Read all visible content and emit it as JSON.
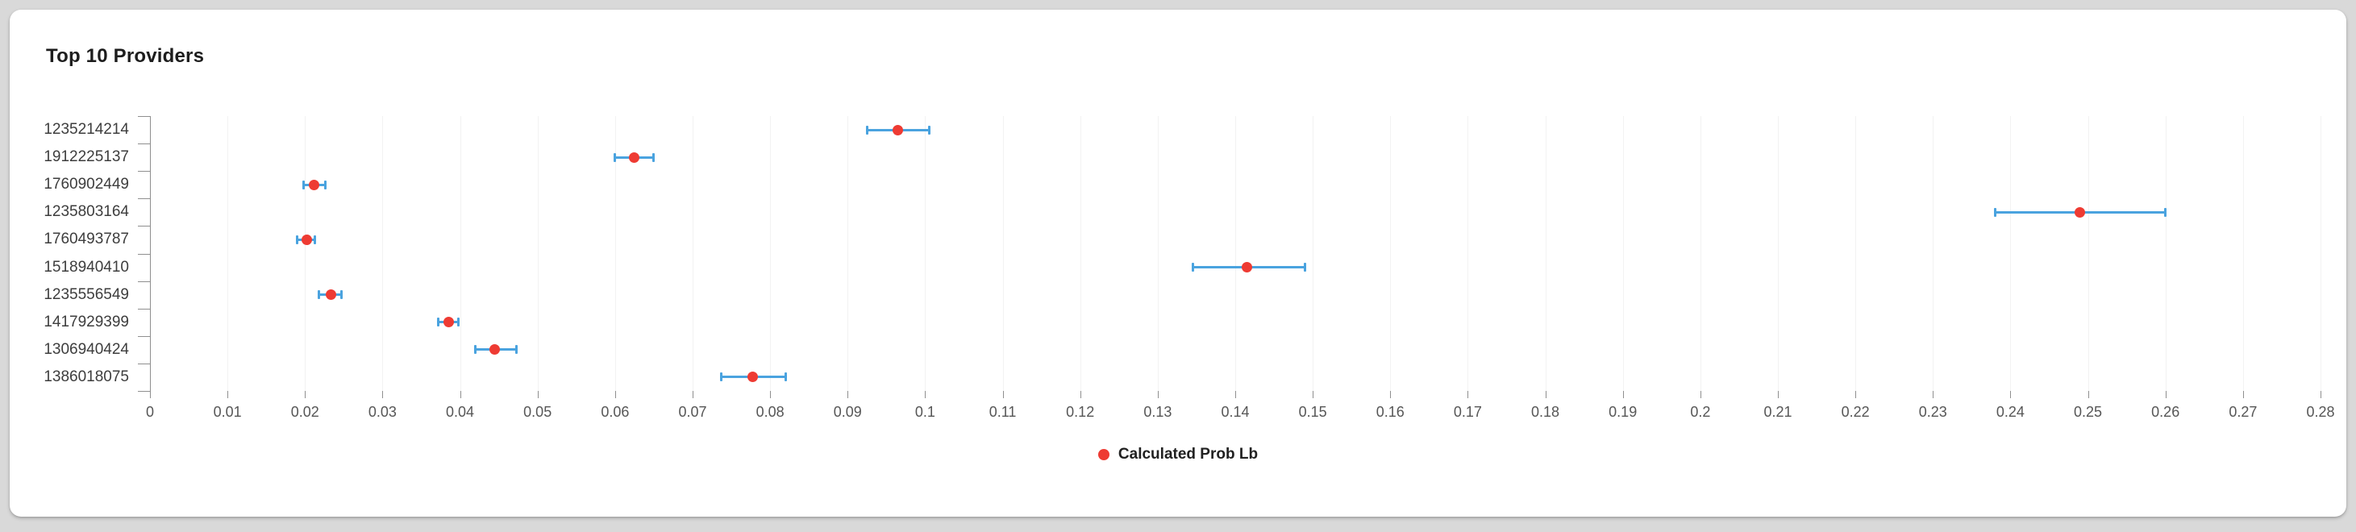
{
  "page": {
    "background": "#d9d9d9",
    "card_background": "#ffffff"
  },
  "header": {
    "title": "Top 10 Providers"
  },
  "chart_data": {
    "type": "scatter",
    "orientation": "horizontal",
    "title": "Top 10 Providers",
    "categories": [
      "1235214214",
      "1912225137",
      "1760902449",
      "1235803164",
      "1760493787",
      "1518940410",
      "1235556549",
      "1417929399",
      "1306940424",
      "1386018075"
    ],
    "series": [
      {
        "name": "Calculated Prob Lb",
        "values": [
          0.0965,
          0.0625,
          0.0212,
          0.249,
          0.0202,
          0.1415,
          0.0234,
          0.0385,
          0.0445,
          0.0778
        ],
        "error_low": [
          0.0925,
          0.06,
          0.0198,
          0.238,
          0.019,
          0.1345,
          0.0218,
          0.0372,
          0.042,
          0.0737
        ],
        "error_high": [
          0.1005,
          0.065,
          0.0226,
          0.26,
          0.0213,
          0.149,
          0.0247,
          0.0398,
          0.0473,
          0.082
        ]
      }
    ],
    "xlim": [
      0,
      0.28
    ],
    "x_tick_step": 0.01,
    "x_tick_labels": [
      "0",
      "0.01",
      "0.02",
      "0.03",
      "0.04",
      "0.05",
      "0.06",
      "0.07",
      "0.08",
      "0.09",
      "0.1",
      "0.11",
      "0.12",
      "0.13",
      "0.14",
      "0.15",
      "0.16",
      "0.17",
      "0.18",
      "0.19",
      "0.2",
      "0.21",
      "0.22",
      "0.23",
      "0.24",
      "0.25",
      "0.26",
      "0.27",
      "0.28"
    ],
    "grid": true,
    "legend_position": "bottom",
    "colors": {
      "point": "#ee3b33",
      "error_bar": "#4aa3df",
      "grid": "#f2f2f2",
      "axis": "#8f8f8f",
      "tick_label": "#565656",
      "category_label": "#3d3d3d",
      "title": "#1d1d1d"
    }
  },
  "legend": {
    "items": [
      {
        "label": "Calculated Prob Lb",
        "color": "#ee3b33"
      }
    ]
  }
}
